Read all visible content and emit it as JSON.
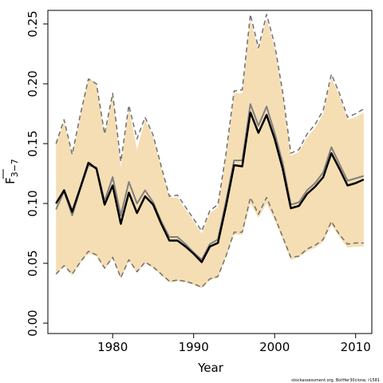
{
  "chart_data": {
    "type": "line",
    "xlabel": "Year",
    "ylabel_main": "F",
    "ylabel_sub": "3−7",
    "xlim": [
      1972,
      2012
    ],
    "ylim": [
      0,
      0.26
    ],
    "xticks": [
      1980,
      1990,
      2000,
      2010
    ],
    "yticks": [
      0.0,
      0.05,
      0.1,
      0.15,
      0.2,
      0.25
    ],
    "ytick_labels": [
      "0.00",
      "0.05",
      "0.10",
      "0.15",
      "0.20",
      "0.25"
    ],
    "grid": false,
    "credit": "stockassessment.org, BotHer30clone, r1581",
    "colors": {
      "band": "#f5deb3",
      "estimate": "#000000",
      "previous": "#808080",
      "ci": "#707070"
    },
    "x": [
      1973,
      1974,
      1975,
      1976,
      1977,
      1978,
      1979,
      1980,
      1981,
      1982,
      1983,
      1984,
      1985,
      1986,
      1987,
      1988,
      1989,
      1990,
      1991,
      1992,
      1993,
      1994,
      1995,
      1996,
      1997,
      1998,
      1999,
      2000,
      2001,
      2002,
      2003,
      2004,
      2005,
      2006,
      2007,
      2008,
      2009,
      2010,
      2011
    ],
    "band_upper": [
      0.15,
      0.168,
      0.14,
      0.172,
      0.205,
      0.2,
      0.157,
      0.19,
      0.13,
      0.18,
      0.145,
      0.17,
      0.155,
      0.13,
      0.105,
      0.105,
      0.095,
      0.085,
      0.075,
      0.092,
      0.097,
      0.14,
      0.192,
      0.192,
      0.254,
      0.228,
      0.254,
      0.23,
      0.19,
      0.14,
      0.143,
      0.155,
      0.163,
      0.175,
      0.205,
      0.19,
      0.17,
      0.172,
      0.176
    ],
    "band_lower": [
      0.04,
      0.048,
      0.04,
      0.05,
      0.058,
      0.056,
      0.045,
      0.054,
      0.037,
      0.052,
      0.042,
      0.05,
      0.046,
      0.04,
      0.034,
      0.035,
      0.034,
      0.032,
      0.029,
      0.036,
      0.038,
      0.055,
      0.074,
      0.074,
      0.1,
      0.088,
      0.1,
      0.086,
      0.07,
      0.053,
      0.055,
      0.06,
      0.063,
      0.068,
      0.082,
      0.072,
      0.063,
      0.064,
      0.064
    ],
    "series": [
      {
        "values": [
          0.1,
          0.111,
          0.093,
          0.113,
          0.134,
          0.129,
          0.099,
          0.115,
          0.083,
          0.109,
          0.092,
          0.106,
          0.099,
          0.083,
          0.069,
          0.069,
          0.064,
          0.058,
          0.051,
          0.064,
          0.067,
          0.098,
          0.132,
          0.131,
          0.176,
          0.159,
          0.174,
          0.154,
          0.129,
          0.096,
          0.098,
          0.108,
          0.114,
          0.122,
          0.142,
          0.129,
          0.115,
          0.117,
          0.12
        ],
        "style": "solid-bold"
      },
      {
        "values": [
          0.095,
          0.11,
          0.09,
          0.112,
          0.132,
          0.13,
          0.102,
          0.122,
          0.09,
          0.118,
          0.1,
          0.111,
          0.101,
          0.085,
          0.072,
          0.072,
          0.066,
          0.059,
          0.053,
          0.066,
          0.07,
          0.102,
          0.136,
          0.136,
          0.183,
          0.165,
          0.181,
          0.159,
          0.134,
          0.099,
          0.101,
          0.111,
          0.117,
          0.126,
          0.147,
          0.133,
          0.119,
          0.121,
          0.123
        ],
        "style": "solid-grey"
      },
      {
        "values": [
          0.15,
          0.17,
          0.141,
          0.174,
          0.204,
          0.2,
          0.158,
          0.192,
          0.135,
          0.182,
          0.154,
          0.172,
          0.157,
          0.131,
          0.106,
          0.107,
          0.097,
          0.087,
          0.077,
          0.094,
          0.099,
          0.142,
          0.194,
          0.195,
          0.258,
          0.23,
          0.258,
          0.233,
          0.193,
          0.142,
          0.145,
          0.158,
          0.166,
          0.178,
          0.208,
          0.192,
          0.172,
          0.175,
          0.179
        ],
        "style": "dashed"
      },
      {
        "values": [
          0.041,
          0.048,
          0.041,
          0.051,
          0.06,
          0.057,
          0.046,
          0.055,
          0.038,
          0.053,
          0.043,
          0.051,
          0.047,
          0.041,
          0.035,
          0.036,
          0.035,
          0.033,
          0.03,
          0.037,
          0.039,
          0.056,
          0.076,
          0.076,
          0.105,
          0.091,
          0.105,
          0.089,
          0.072,
          0.055,
          0.056,
          0.062,
          0.065,
          0.07,
          0.085,
          0.074,
          0.066,
          0.067,
          0.067
        ],
        "style": "dashed"
      }
    ]
  }
}
